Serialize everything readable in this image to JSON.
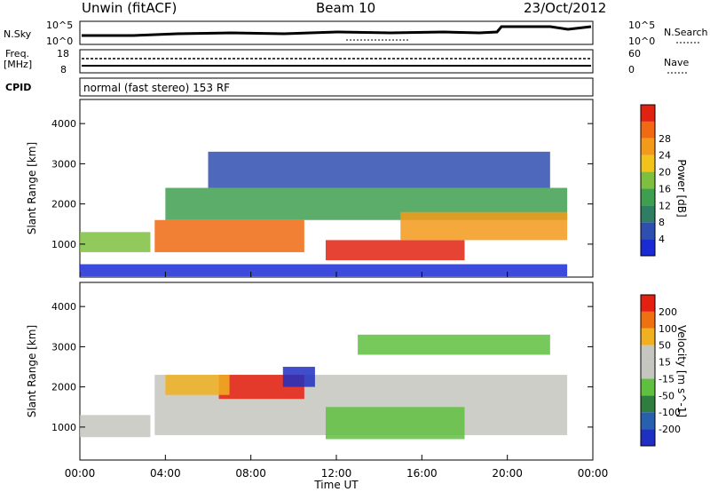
{
  "header": {
    "station": "Unwin (fitACF)",
    "beam": "Beam 10",
    "date": "23/Oct/2012"
  },
  "panels": {
    "nsky": {
      "label": "N.Sky",
      "ticks": [
        "10^5",
        "10^0"
      ],
      "right_ticks": [
        "10^5",
        "10^0"
      ],
      "right_label": "N.Search"
    },
    "freq": {
      "label": "Freq.",
      "unit": "[MHz]",
      "ticks": [
        "18",
        "8"
      ],
      "right_ticks": [
        "60",
        "0"
      ],
      "right_label": "Nave"
    },
    "cpid": {
      "label": "CPID",
      "text": "normal (fast stereo) 153 RF"
    }
  },
  "chart_data": [
    {
      "type": "heatmap",
      "title": "Power",
      "ylabel": "Slant Range [km]",
      "xlabel": "",
      "x_range": [
        "00:00",
        "00:00"
      ],
      "ylim": [
        180,
        4600
      ],
      "y_ticks": [
        1000,
        2000,
        3000,
        4000
      ],
      "colorbar": {
        "label": "Power [dB]",
        "ticks": [
          4,
          8,
          12,
          16,
          20,
          24,
          28
        ],
        "colors": [
          "#1a2bd6",
          "#2f4fb0",
          "#2f7d63",
          "#3f9f50",
          "#7fbf3f",
          "#f2c31a",
          "#f39a1a",
          "#ef6a12",
          "#e22210"
        ]
      },
      "regions": [
        {
          "t0": 0.0,
          "t1": 3.3,
          "r0": 800,
          "r1": 1300,
          "color": "#7fbf3f"
        },
        {
          "t0": 3.5,
          "t1": 10.5,
          "r0": 800,
          "r1": 1600,
          "color": "#ef6a12"
        },
        {
          "t0": 4.0,
          "t1": 22.8,
          "r0": 1600,
          "r1": 2400,
          "color": "#3f9f50"
        },
        {
          "t0": 11.5,
          "t1": 18.0,
          "r0": 600,
          "r1": 1100,
          "color": "#e22210"
        },
        {
          "t0": 15.0,
          "t1": 22.8,
          "r0": 1100,
          "r1": 1800,
          "color": "#f39a1a"
        },
        {
          "t0": 6.0,
          "t1": 22.0,
          "r0": 2400,
          "r1": 3300,
          "color": "#2f4fb0"
        },
        {
          "t0": 0.0,
          "t1": 22.8,
          "r0": 200,
          "r1": 500,
          "color": "#1a2bd6"
        }
      ]
    },
    {
      "type": "heatmap",
      "title": "Velocity",
      "ylabel": "Slant Range [km]",
      "xlabel": "Time UT",
      "x_range": [
        "00:00",
        "00:00"
      ],
      "x_ticks": [
        "00:00",
        "04:00",
        "08:00",
        "12:00",
        "16:00",
        "20:00",
        "00:00"
      ],
      "ylim": [
        180,
        4600
      ],
      "y_ticks": [
        1000,
        2000,
        3000,
        4000
      ],
      "colorbar": {
        "label": "Velocity [m s^-1]",
        "ticks": [
          200,
          100,
          50,
          15,
          -15,
          -50,
          -100,
          -200
        ],
        "colors": [
          "#1f2fc2",
          "#2860b0",
          "#2f7d3f",
          "#5fbf3f",
          "#c6c6c0",
          "#c6c6c0",
          "#f0b020",
          "#ef7010",
          "#e62010"
        ]
      },
      "regions": [
        {
          "t0": 0.0,
          "t1": 3.3,
          "r0": 750,
          "r1": 1300,
          "color": "#c6c6c0"
        },
        {
          "t0": 3.5,
          "t1": 22.8,
          "r0": 800,
          "r1": 2300,
          "color": "#c6c6c0"
        },
        {
          "t0": 6.5,
          "t1": 10.5,
          "r0": 1700,
          "r1": 2300,
          "color": "#e62010"
        },
        {
          "t0": 11.5,
          "t1": 18.0,
          "r0": 700,
          "r1": 1500,
          "color": "#5fbf3f"
        },
        {
          "t0": 9.5,
          "t1": 11.0,
          "r0": 2000,
          "r1": 2500,
          "color": "#1f2fc2"
        },
        {
          "t0": 4.0,
          "t1": 7.0,
          "r0": 1800,
          "r1": 2300,
          "color": "#f0b020"
        },
        {
          "t0": 13.0,
          "t1": 22.0,
          "r0": 2800,
          "r1": 3300,
          "color": "#5fbf3f"
        }
      ]
    }
  ]
}
